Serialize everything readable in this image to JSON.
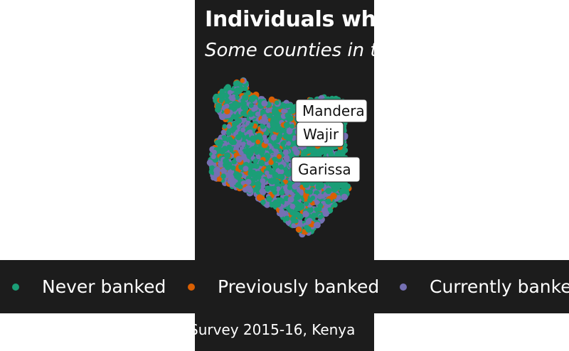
{
  "chart": {
    "title": "Individuals wh",
    "subtitle": "Some counties in t",
    "caption": "Survey 2015-16, Kenya"
  },
  "colors": {
    "background": "#1c1c1c",
    "never": "#1b9e77",
    "previously": "#d95f02",
    "currently": "#7570b3"
  },
  "chart_data": {
    "type": "scatter",
    "title": "Individuals wh",
    "subtitle": "Some counties in t",
    "legend_position": "bottom",
    "series": [
      {
        "name": "Never banked",
        "color": "#1b9e77"
      },
      {
        "name": "Previously banked",
        "color": "#d95f02"
      },
      {
        "name": "Currently banked",
        "color": "#7570b3"
      }
    ],
    "annotations": [
      "Mandera",
      "Wajir",
      "Garissa"
    ]
  },
  "legend": {
    "items": [
      {
        "label": "Never banked",
        "color": "#1b9e77"
      },
      {
        "label": "Previously banked",
        "color": "#d95f02"
      },
      {
        "label": "Currently banke",
        "color": "#7570b3"
      }
    ]
  }
}
